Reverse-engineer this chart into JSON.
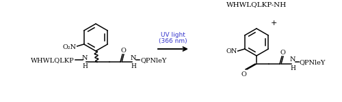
{
  "bg_color": "#ffffff",
  "title_text": "WHWLQLKP-NH",
  "uv_text1": "UV light",
  "uv_text2": "(366 nm)",
  "uv_color": "#3333cc",
  "left_peptide": "WHWLQLKP",
  "right_peptide": "QPNleY",
  "nitro_label": "O₂N",
  "nitroso_label": "ON",
  "plus_label": "+",
  "figsize": [
    5.0,
    1.5
  ],
  "dpi": 100
}
